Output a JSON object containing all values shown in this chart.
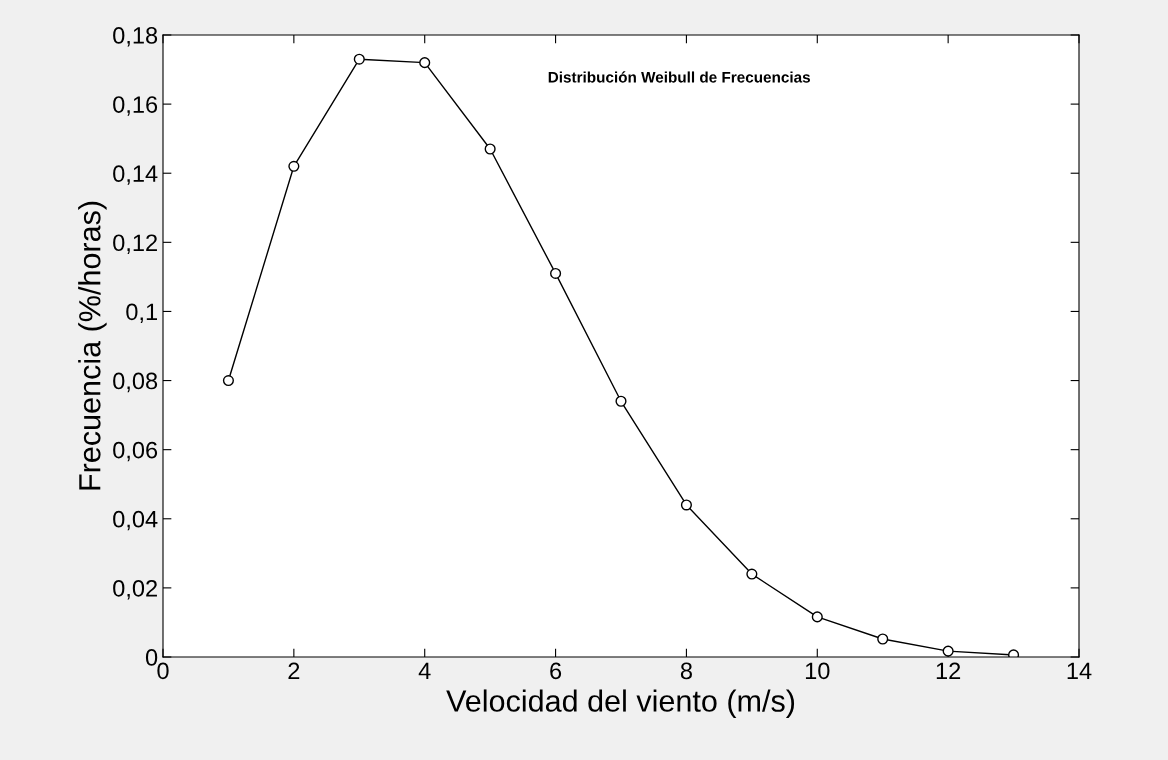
{
  "chart_data": {
    "type": "line",
    "title": "Distribución Weibull de Frecuencias",
    "xlabel": "Velocidad del viento (m/s)",
    "ylabel": "Frecuencia (%/horas)",
    "x": [
      1,
      2,
      3,
      4,
      5,
      6,
      7,
      8,
      9,
      10,
      11,
      12,
      13
    ],
    "series": [
      {
        "color": "#000000",
        "values": [
          0.08,
          0.142,
          0.173,
          0.172,
          0.147,
          0.111,
          0.074,
          0.044,
          0.024,
          0.0116,
          0.0052,
          0.0017,
          0.0006
        ]
      }
    ],
    "marker": "circle",
    "line_style": "solid",
    "grid": false,
    "legend": false,
    "xlim": [
      0,
      14
    ],
    "xticks": [
      0,
      2,
      4,
      6,
      8,
      10,
      12,
      14
    ],
    "ylim": [
      0,
      0.18
    ],
    "yticks": [
      0,
      {
        "value": 0.02,
        "label": "0,02"
      },
      {
        "value": 0.04,
        "label": "0,04"
      },
      {
        "value": 0.06,
        "label": "0,06"
      },
      {
        "value": 0.08,
        "label": "0,08"
      },
      {
        "value": 0.1,
        "label": "0,1"
      },
      {
        "value": 0.12,
        "label": "0,12"
      },
      {
        "value": 0.14,
        "label": "0,14"
      },
      {
        "value": 0.16,
        "label": "0,16"
      },
      {
        "value": 0.18,
        "label": "0,18"
      }
    ]
  }
}
